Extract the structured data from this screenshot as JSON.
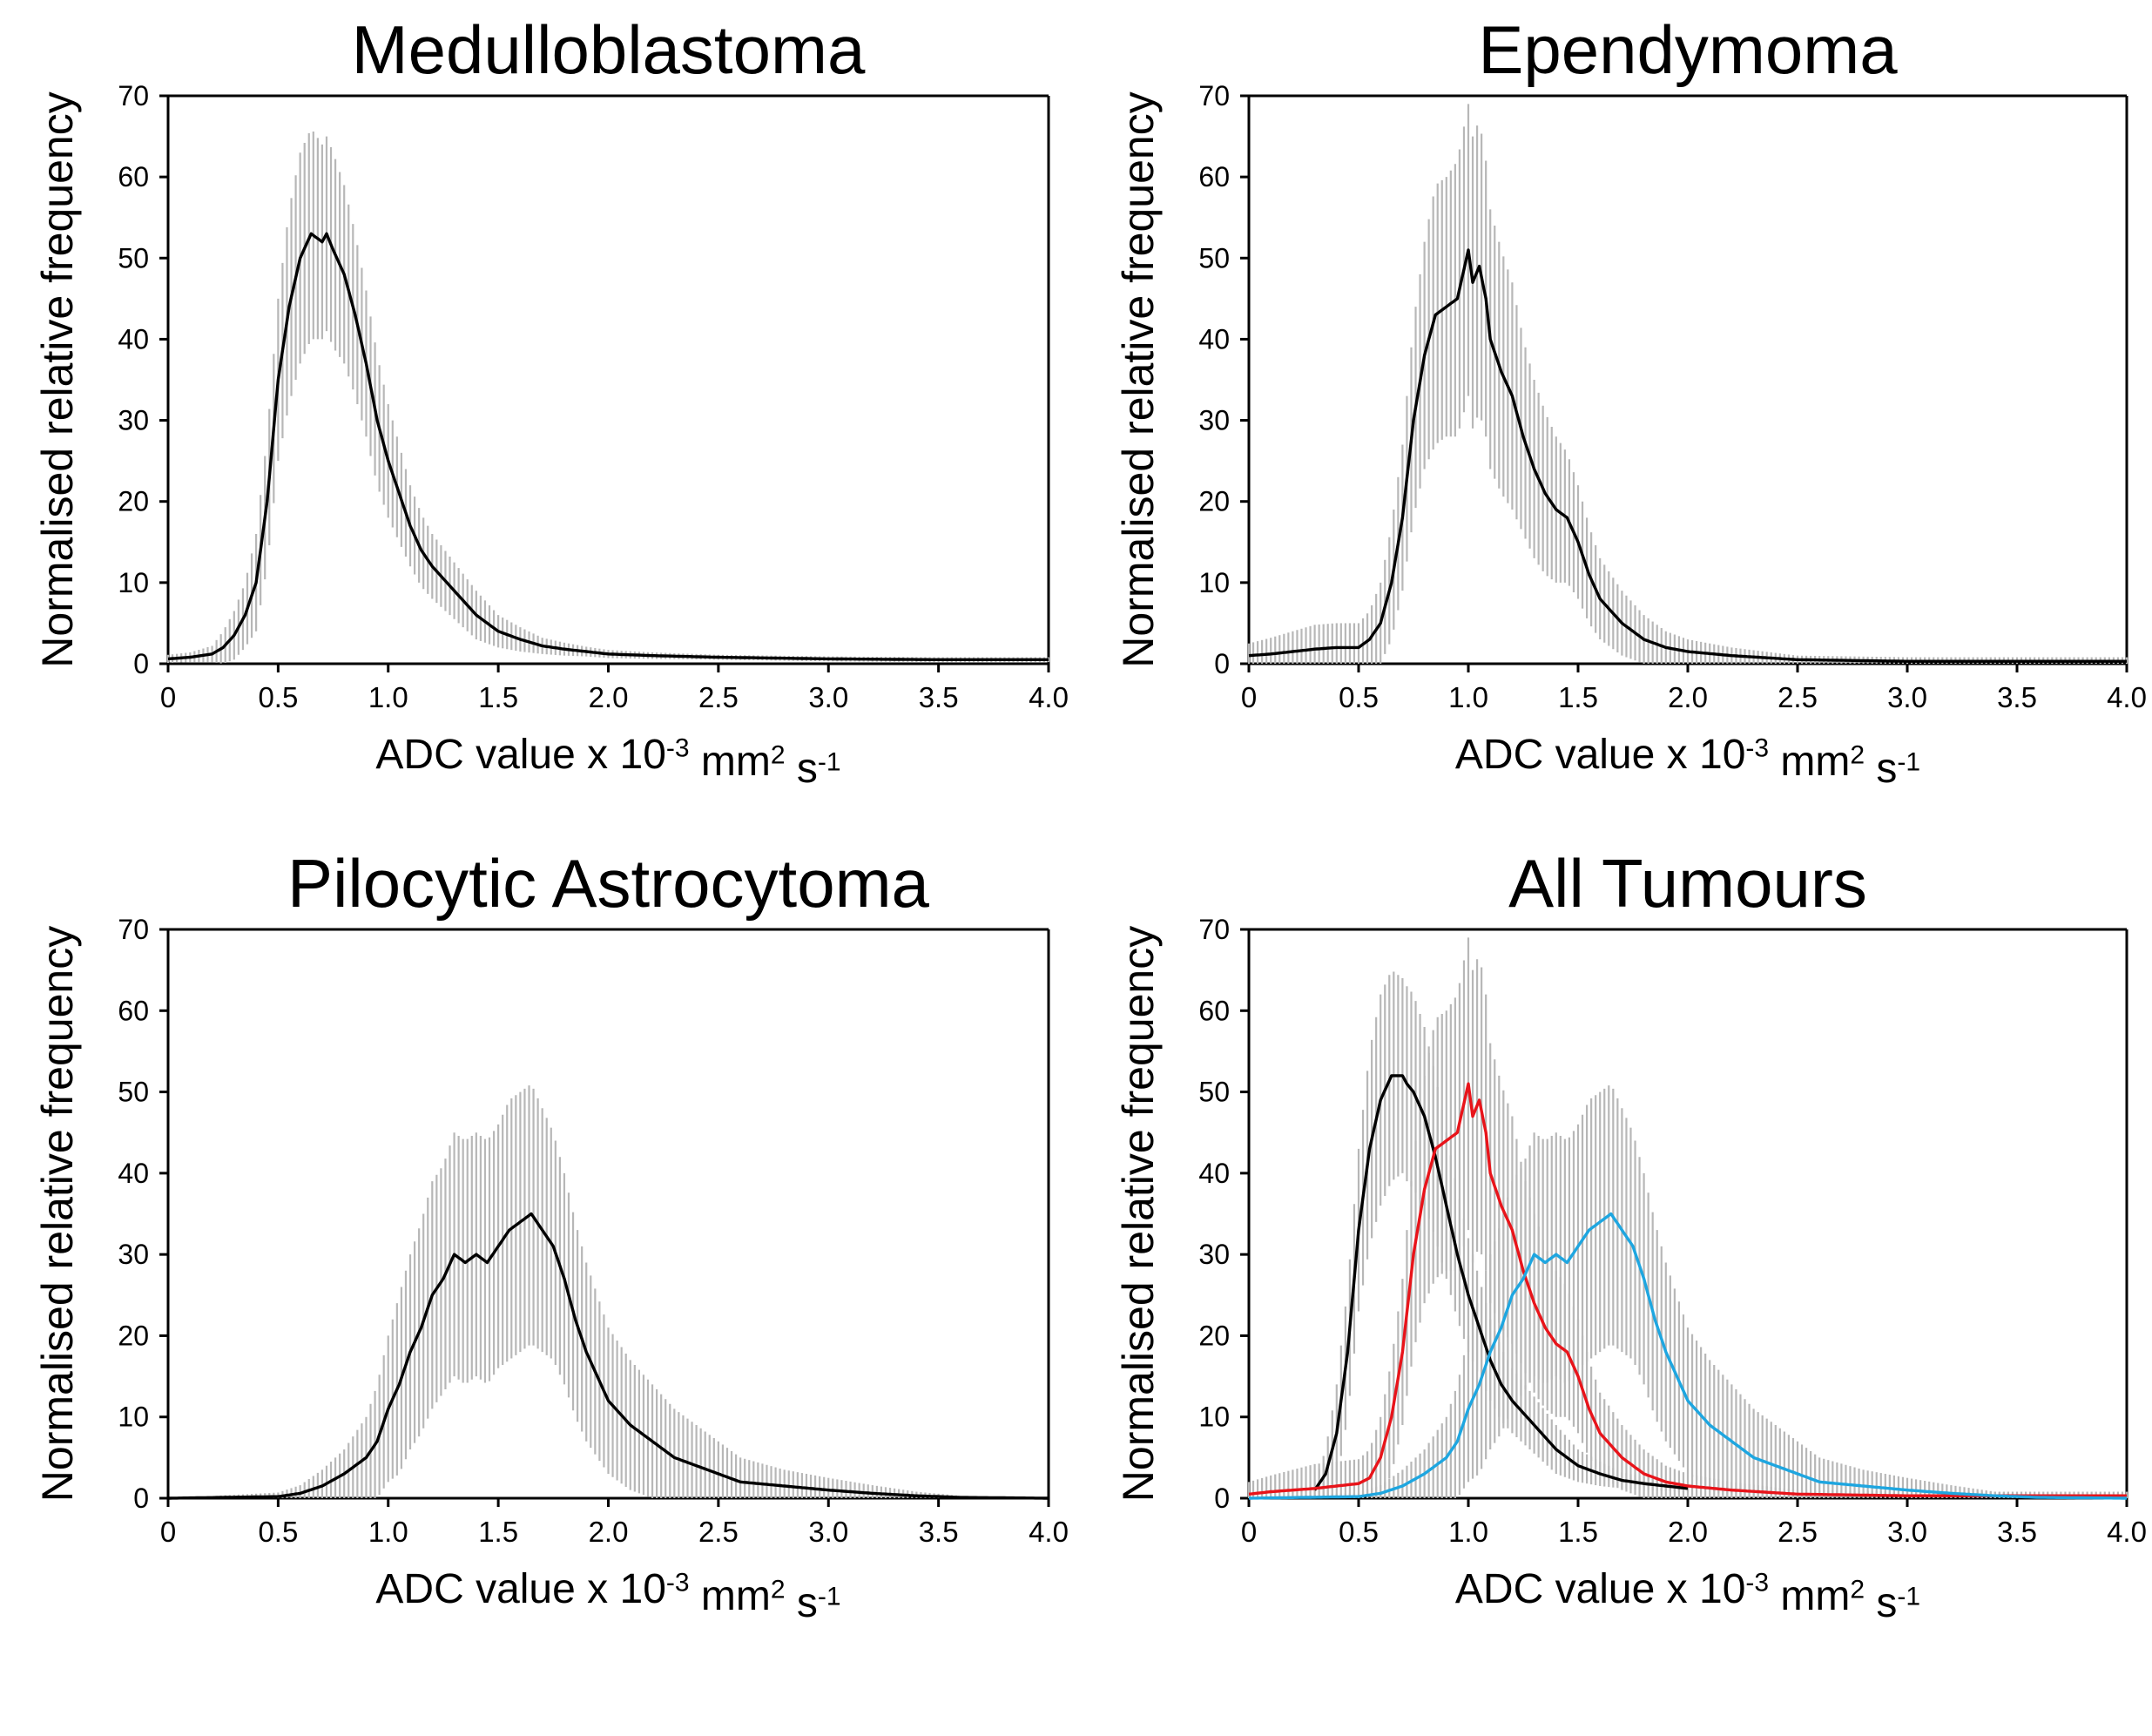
{
  "colors": {
    "black": "#000000",
    "red": "#e8141a",
    "blue": "#1ea6e0",
    "error_bar": "#b7b7b7"
  },
  "chart_data": [
    {
      "type": "line",
      "title": "Medulloblastoma",
      "xlabel": "ADC value x 10-3 mm2 s-1",
      "xlabel_parts": {
        "base": "ADC value x 10",
        "exp1": "-3",
        "mid": " mm",
        "exp2": "2",
        "mid2": " s",
        "exp3": "-1"
      },
      "ylabel": "Normalised relative frequency",
      "xlim": [
        0,
        4.0
      ],
      "ylim": [
        0,
        70
      ],
      "x_ticks": [
        "0",
        "0.5",
        "1.0",
        "1.5",
        "2.0",
        "2.5",
        "3.0",
        "3.5",
        "4.0"
      ],
      "y_ticks": [
        "0",
        "10",
        "20",
        "30",
        "40",
        "50",
        "60",
        "70"
      ],
      "series": [
        {
          "name": "Medulloblastoma",
          "color": "#000000",
          "x": [
            0,
            0.1,
            0.2,
            0.25,
            0.3,
            0.35,
            0.4,
            0.45,
            0.5,
            0.55,
            0.6,
            0.65,
            0.7,
            0.72,
            0.75,
            0.8,
            0.85,
            0.9,
            0.95,
            1.0,
            1.05,
            1.1,
            1.15,
            1.2,
            1.3,
            1.4,
            1.5,
            1.6,
            1.7,
            1.8,
            1.9,
            2.0,
            2.2,
            2.5,
            3.0,
            3.5,
            4.0
          ],
          "y": [
            0.6,
            0.8,
            1.2,
            2,
            3.5,
            6,
            10,
            20,
            35,
            44,
            50,
            53,
            52,
            53,
            51,
            48,
            43,
            37,
            30,
            25,
            21,
            17,
            14,
            12,
            9,
            6,
            4,
            3,
            2.2,
            1.8,
            1.5,
            1.2,
            1,
            0.8,
            0.6,
            0.5,
            0.5
          ],
          "err": [
            0.5,
            0.6,
            1,
            2,
            3,
            4,
            6,
            8,
            10,
            12,
            13,
            13,
            12,
            12,
            12,
            11,
            10,
            9,
            8,
            7,
            6,
            5,
            4.5,
            4,
            3.5,
            3,
            2,
            1.5,
            1,
            0.8,
            0.6,
            0.5,
            0.4,
            0.3,
            0.3,
            0.3,
            0.3
          ]
        }
      ]
    },
    {
      "type": "line",
      "title": "Ependymoma",
      "xlabel": "ADC value x 10-3 mm2 s-1",
      "xlabel_parts": {
        "base": "ADC value x 10",
        "exp1": "-3",
        "mid": " mm",
        "exp2": "2",
        "mid2": " s",
        "exp3": "-1"
      },
      "ylabel": "Normalised relative frequency",
      "xlim": [
        0,
        4.0
      ],
      "ylim": [
        0,
        70
      ],
      "x_ticks": [
        "0",
        "0.5",
        "1.0",
        "1.5",
        "2.0",
        "2.5",
        "3.0",
        "3.5",
        "4.0"
      ],
      "y_ticks": [
        "0",
        "10",
        "20",
        "30",
        "40",
        "50",
        "60",
        "70"
      ],
      "series": [
        {
          "name": "Ependymoma",
          "color": "#000000",
          "x": [
            0,
            0.1,
            0.2,
            0.3,
            0.4,
            0.5,
            0.55,
            0.6,
            0.65,
            0.7,
            0.75,
            0.8,
            0.85,
            0.9,
            0.95,
            1.0,
            1.02,
            1.05,
            1.08,
            1.1,
            1.15,
            1.2,
            1.25,
            1.3,
            1.35,
            1.4,
            1.45,
            1.5,
            1.55,
            1.6,
            1.7,
            1.8,
            1.9,
            2.0,
            2.2,
            2.5,
            3.0,
            3.5,
            4.0
          ],
          "y": [
            1,
            1.2,
            1.5,
            1.8,
            2,
            2,
            3,
            5,
            10,
            18,
            30,
            38,
            43,
            44,
            45,
            51,
            47,
            49,
            45,
            40,
            36,
            33,
            28,
            24,
            21,
            19,
            18,
            15,
            11,
            8,
            5,
            3,
            2,
            1.5,
            1,
            0.5,
            0.3,
            0.3,
            0.3
          ],
          "err": [
            1.5,
            2,
            2.5,
            3,
            3,
            3,
            3.5,
            5,
            7,
            9,
            12,
            14,
            16,
            16,
            17,
            18,
            18,
            18,
            17,
            16,
            15,
            14,
            12,
            11,
            10,
            9,
            8,
            7,
            6,
            5,
            4,
            3,
            2,
            1.5,
            1,
            0.5,
            0.5,
            0.5,
            0.5
          ]
        }
      ]
    },
    {
      "type": "line",
      "title": "Pilocytic Astrocytoma",
      "xlabel": "ADC value x 10-3 mm2 s-1",
      "xlabel_parts": {
        "base": "ADC value x 10",
        "exp1": "-3",
        "mid": " mm",
        "exp2": "2",
        "mid2": " s",
        "exp3": "-1"
      },
      "ylabel": "Normalised relative frequency",
      "xlim": [
        0,
        4.0
      ],
      "ylim": [
        0,
        70
      ],
      "x_ticks": [
        "0",
        "0.5",
        "1.0",
        "1.5",
        "2.0",
        "2.5",
        "3.0",
        "3.5",
        "4.0"
      ],
      "y_ticks": [
        "0",
        "10",
        "20",
        "30",
        "40",
        "50",
        "60",
        "70"
      ],
      "series": [
        {
          "name": "Pilocytic Astrocytoma",
          "color": "#000000",
          "x": [
            0,
            0.5,
            0.6,
            0.7,
            0.8,
            0.9,
            0.95,
            1.0,
            1.05,
            1.1,
            1.15,
            1.2,
            1.25,
            1.3,
            1.35,
            1.4,
            1.45,
            1.5,
            1.55,
            1.6,
            1.65,
            1.7,
            1.75,
            1.8,
            1.85,
            1.9,
            1.95,
            2.0,
            2.1,
            2.2,
            2.3,
            2.4,
            2.5,
            2.6,
            2.8,
            3.0,
            3.2,
            3.4,
            3.6,
            4.0
          ],
          "y": [
            0,
            0.2,
            0.6,
            1.5,
            3,
            5,
            7,
            11,
            14,
            18,
            21,
            25,
            27,
            30,
            29,
            30,
            29,
            31,
            33,
            34,
            35,
            33,
            31,
            27,
            22,
            18,
            15,
            12,
            9,
            7,
            5,
            4,
            3,
            2,
            1.5,
            1,
            0.6,
            0.3,
            0.1,
            0
          ],
          "err": [
            0,
            0.5,
            1,
            2,
            3,
            5,
            7,
            9,
            11,
            12,
            13,
            14,
            14,
            15,
            15,
            15,
            15,
            15,
            16,
            16,
            16,
            15,
            14,
            13,
            12,
            11,
            10,
            9,
            8,
            7,
            6,
            5,
            4,
            3,
            2,
            1.5,
            1,
            0.5,
            0.2,
            0
          ]
        }
      ]
    },
    {
      "type": "line",
      "title": "All Tumours",
      "xlabel": "ADC value x 10-3 mm2 s-1",
      "xlabel_parts": {
        "base": "ADC value x 10",
        "exp1": "-3",
        "mid": " mm",
        "exp2": "2",
        "mid2": " s",
        "exp3": "-1"
      },
      "ylabel": "Normalised relative frequency",
      "xlim": [
        0,
        4.0
      ],
      "ylim": [
        0,
        70
      ],
      "x_ticks": [
        "0",
        "0.5",
        "1.0",
        "1.5",
        "2.0",
        "2.5",
        "3.0",
        "3.5",
        "4.0"
      ],
      "y_ticks": [
        "0",
        "10",
        "20",
        "30",
        "40",
        "50",
        "60",
        "70"
      ],
      "series": [
        {
          "name": "Medulloblastoma",
          "color": "#000000",
          "x": [
            0.3,
            0.35,
            0.4,
            0.45,
            0.5,
            0.55,
            0.6,
            0.65,
            0.7,
            0.72,
            0.75,
            0.8,
            0.85,
            0.9,
            0.95,
            1.0,
            1.05,
            1.1,
            1.15,
            1.2,
            1.3,
            1.4,
            1.5,
            1.6,
            1.7,
            1.8,
            1.9,
            2.0
          ],
          "y": [
            1,
            3,
            8,
            18,
            33,
            43,
            49,
            52,
            52,
            51,
            50,
            47,
            42,
            36,
            30,
            25,
            21,
            17,
            14,
            12,
            9,
            6,
            4,
            3,
            2.2,
            1.8,
            1.5,
            1.2
          ],
          "err": [
            1,
            3,
            6,
            8,
            10,
            12,
            13,
            13,
            12,
            12,
            12,
            11,
            10,
            9,
            8,
            7,
            6,
            5,
            4.5,
            4,
            3.5,
            3,
            2,
            1.5,
            1,
            0.8,
            0.6,
            0.5
          ]
        },
        {
          "name": "Ependymoma",
          "color": "#e8141a",
          "x": [
            0,
            0.1,
            0.2,
            0.3,
            0.4,
            0.5,
            0.55,
            0.6,
            0.65,
            0.7,
            0.75,
            0.8,
            0.85,
            0.9,
            0.95,
            1.0,
            1.02,
            1.05,
            1.08,
            1.1,
            1.15,
            1.2,
            1.25,
            1.3,
            1.35,
            1.4,
            1.45,
            1.5,
            1.55,
            1.6,
            1.7,
            1.8,
            1.9,
            2.0,
            2.2,
            2.5,
            3.0,
            3.5,
            4.0
          ],
          "y": [
            0.5,
            0.8,
            1,
            1.2,
            1.5,
            1.8,
            2.5,
            5,
            10,
            18,
            30,
            38,
            43,
            44,
            45,
            51,
            47,
            49,
            45,
            40,
            36,
            33,
            28,
            24,
            21,
            19,
            18,
            15,
            11,
            8,
            5,
            3,
            2,
            1.5,
            1,
            0.5,
            0.3,
            0.3,
            0.3
          ],
          "err": [
            1.5,
            2,
            2.5,
            3,
            3,
            3,
            3.5,
            5,
            7,
            9,
            12,
            14,
            16,
            16,
            17,
            18,
            18,
            18,
            17,
            16,
            15,
            14,
            12,
            11,
            10,
            9,
            8,
            7,
            6,
            5,
            4,
            3,
            2,
            1.5,
            1,
            0.5,
            0.5,
            0.5,
            0.5
          ]
        },
        {
          "name": "Pilocytic Astrocytoma",
          "color": "#1ea6e0",
          "x": [
            0,
            0.5,
            0.6,
            0.7,
            0.8,
            0.9,
            0.95,
            1.0,
            1.05,
            1.1,
            1.15,
            1.2,
            1.25,
            1.3,
            1.35,
            1.4,
            1.45,
            1.5,
            1.55,
            1.6,
            1.65,
            1.7,
            1.75,
            1.8,
            1.85,
            1.9,
            1.95,
            2.0,
            2.1,
            2.2,
            2.3,
            2.4,
            2.5,
            2.6,
            2.8,
            3.0,
            3.2,
            3.4,
            3.6,
            4.0
          ],
          "y": [
            0,
            0.2,
            0.6,
            1.5,
            3,
            5,
            7,
            11,
            14,
            18,
            21,
            25,
            27,
            30,
            29,
            30,
            29,
            31,
            33,
            34,
            35,
            33,
            31,
            27,
            22,
            18,
            15,
            12,
            9,
            7,
            5,
            4,
            3,
            2,
            1.5,
            1,
            0.6,
            0.3,
            0.1,
            0
          ],
          "err": [
            0,
            0.5,
            1,
            2,
            3,
            5,
            7,
            9,
            11,
            12,
            13,
            14,
            14,
            15,
            15,
            15,
            15,
            15,
            16,
            16,
            16,
            15,
            14,
            13,
            12,
            11,
            10,
            9,
            8,
            7,
            6,
            5,
            4,
            3,
            2,
            1.5,
            1,
            0.5,
            0.2,
            0
          ]
        }
      ]
    }
  ]
}
